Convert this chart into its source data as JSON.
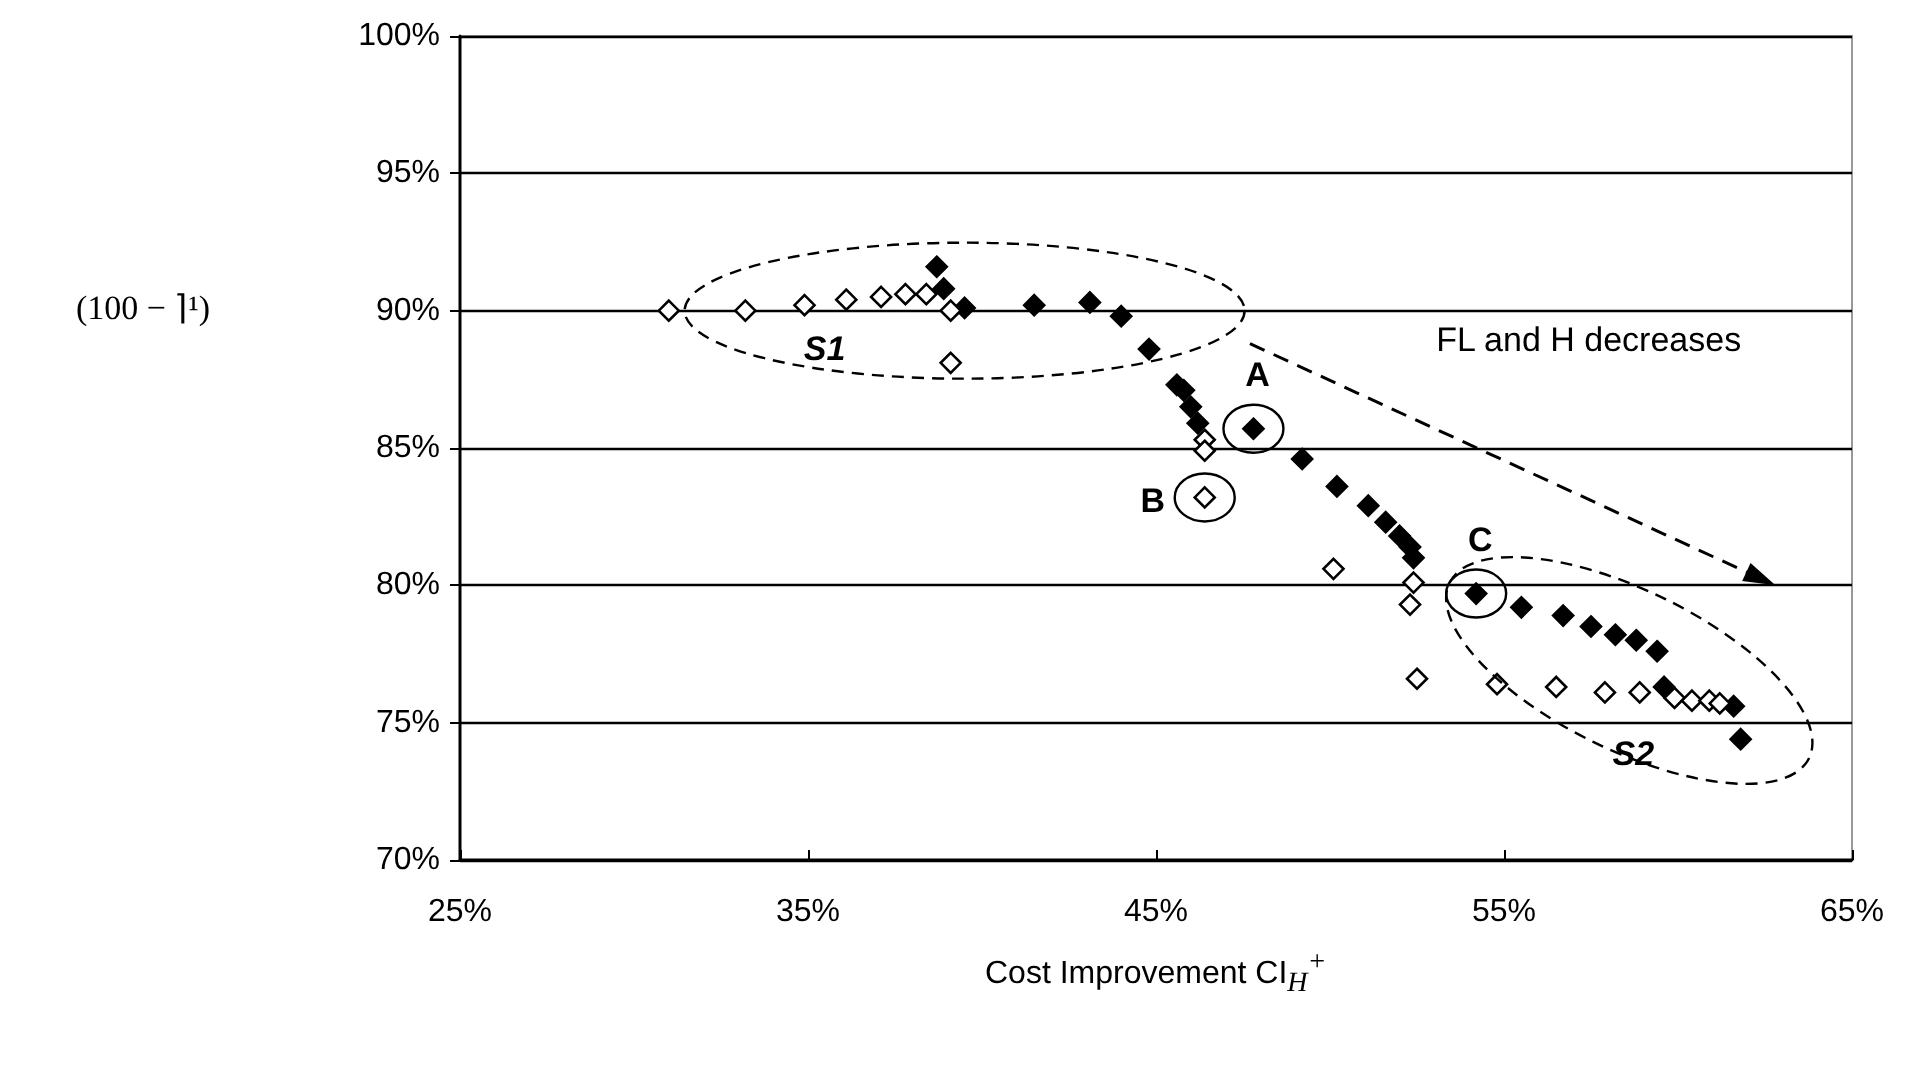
{
  "chart_data": {
    "type": "scatter",
    "xlabel": "Cost Improvement CI$_{H}$$^{+}$",
    "ylabel": "(100 − ⌉¹)",
    "marker": "diamond",
    "grid": "y",
    "xlim": [
      25,
      65
    ],
    "xticks": [
      {
        "value": 25,
        "label": "25%"
      },
      {
        "value": 35,
        "label": "35%"
      },
      {
        "value": 45,
        "label": "45%"
      },
      {
        "value": 55,
        "label": "55%"
      },
      {
        "value": 65,
        "label": "65%"
      }
    ],
    "ylim": [
      70,
      100
    ],
    "yticks": [
      {
        "value": 70,
        "label": "70%"
      },
      {
        "value": 75,
        "label": "75%"
      },
      {
        "value": 80,
        "label": "80%"
      },
      {
        "value": 85,
        "label": "85%"
      },
      {
        "value": 90,
        "label": "90%"
      },
      {
        "value": 95,
        "label": "95%"
      },
      {
        "value": 100,
        "label": "100%"
      }
    ],
    "series": [
      {
        "color": "#000000",
        "x": [
          38.7,
          38.9,
          39.5,
          41.5,
          43.1,
          44.0,
          44.8,
          45.6,
          45.8,
          46.0,
          46.2,
          47.8,
          49.2,
          50.2,
          51.1,
          51.6,
          52.0,
          52.3,
          52.4,
          54.2,
          55.5,
          56.7,
          57.5,
          58.2,
          58.8,
          59.4,
          59.6,
          61.6,
          61.8
        ],
        "values": [
          91.6,
          90.8,
          90.1,
          90.2,
          90.3,
          89.8,
          88.6,
          87.3,
          87.1,
          86.5,
          85.9,
          85.7,
          84.6,
          83.6,
          82.9,
          82.3,
          81.8,
          81.4,
          81.0,
          79.7,
          79.2,
          78.9,
          78.5,
          78.2,
          78.0,
          77.6,
          76.3,
          75.6,
          74.4
        ]
      },
      {
        "color": "#ffffff",
        "x": [
          31.0,
          33.2,
          34.9,
          36.1,
          37.1,
          37.8,
          38.4,
          39.1,
          39.1,
          46.4,
          46.4,
          46.4,
          50.1,
          52.4,
          52.3,
          52.5,
          54.8,
          56.5,
          57.9,
          58.9,
          59.9,
          60.4,
          60.9,
          61.2
        ],
        "values": [
          90.0,
          90.0,
          90.2,
          90.4,
          90.5,
          90.6,
          90.6,
          90.0,
          88.1,
          85.3,
          84.9,
          83.2,
          80.6,
          80.1,
          79.3,
          76.6,
          76.4,
          76.3,
          76.1,
          76.1,
          75.9,
          75.8,
          75.8,
          75.7
        ]
      }
    ],
    "annotations": [
      {
        "text": "A",
        "x": 47.8,
        "y": 85.7
      },
      {
        "text": "B",
        "x": 46.4,
        "y": 83.2
      },
      {
        "text": "C",
        "x": 54.2,
        "y": 79.7
      },
      "S1",
      "S2",
      "FL and H decreases"
    ]
  }
}
